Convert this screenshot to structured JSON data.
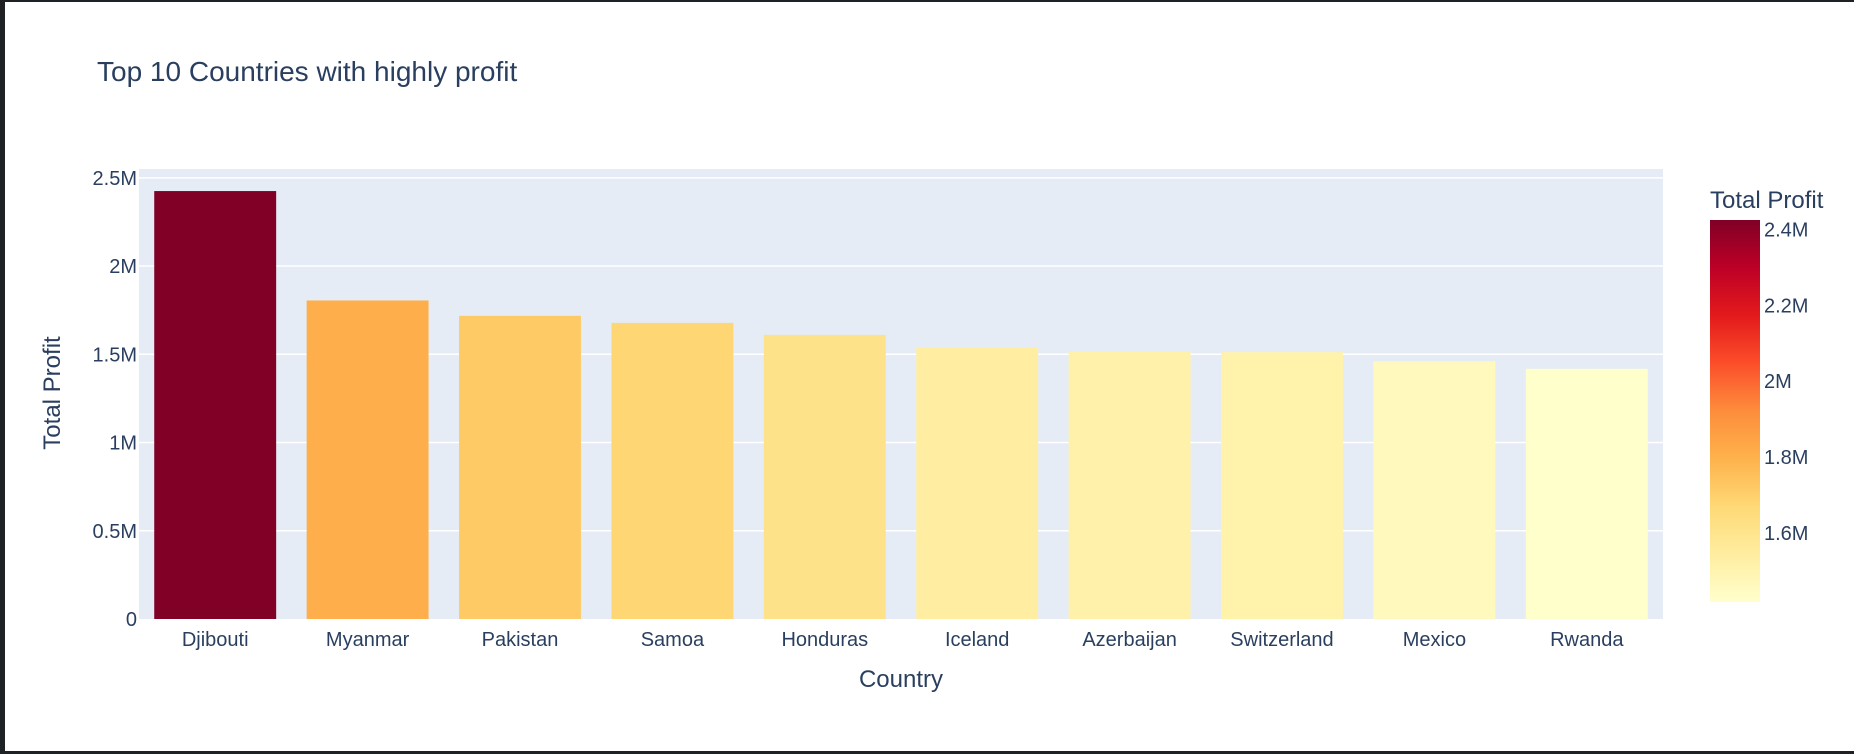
{
  "chart_data": {
    "type": "bar",
    "title": "Top 10 Countries with highly profit",
    "xlabel": "Country",
    "ylabel": "Total Profit",
    "categories": [
      "Djibouti",
      "Myanmar",
      "Pakistan",
      "Samoa",
      "Honduras",
      "Iceland",
      "Azerbaijan",
      "Switzerland",
      "Mexico",
      "Rwanda"
    ],
    "values": [
      2425000,
      1805000,
      1718000,
      1678000,
      1610000,
      1540000,
      1515000,
      1512000,
      1460000,
      1418000
    ],
    "ylim": [
      0,
      2550000
    ],
    "yticks": [
      {
        "value": 0,
        "label": "0"
      },
      {
        "value": 500000,
        "label": "0.5M"
      },
      {
        "value": 1000000,
        "label": "1M"
      },
      {
        "value": 1500000,
        "label": "1.5M"
      },
      {
        "value": 2000000,
        "label": "2M"
      },
      {
        "value": 2500000,
        "label": "2.5M"
      }
    ],
    "grid": true,
    "colorbar": {
      "title": "Total Profit",
      "range": [
        1418000,
        2425000
      ],
      "ticks": [
        {
          "value": 1600000,
          "label": "1.6M"
        },
        {
          "value": 1800000,
          "label": "1.8M"
        },
        {
          "value": 2000000,
          "label": "2M"
        },
        {
          "value": 2200000,
          "label": "2.2M"
        },
        {
          "value": 2400000,
          "label": "2.4M"
        }
      ],
      "colorscale": [
        "#ffffcc",
        "#ffeda0",
        "#fed976",
        "#feb24c",
        "#fd8d3c",
        "#fc4e2a",
        "#e31a1c",
        "#bd0026",
        "#800026"
      ]
    }
  }
}
